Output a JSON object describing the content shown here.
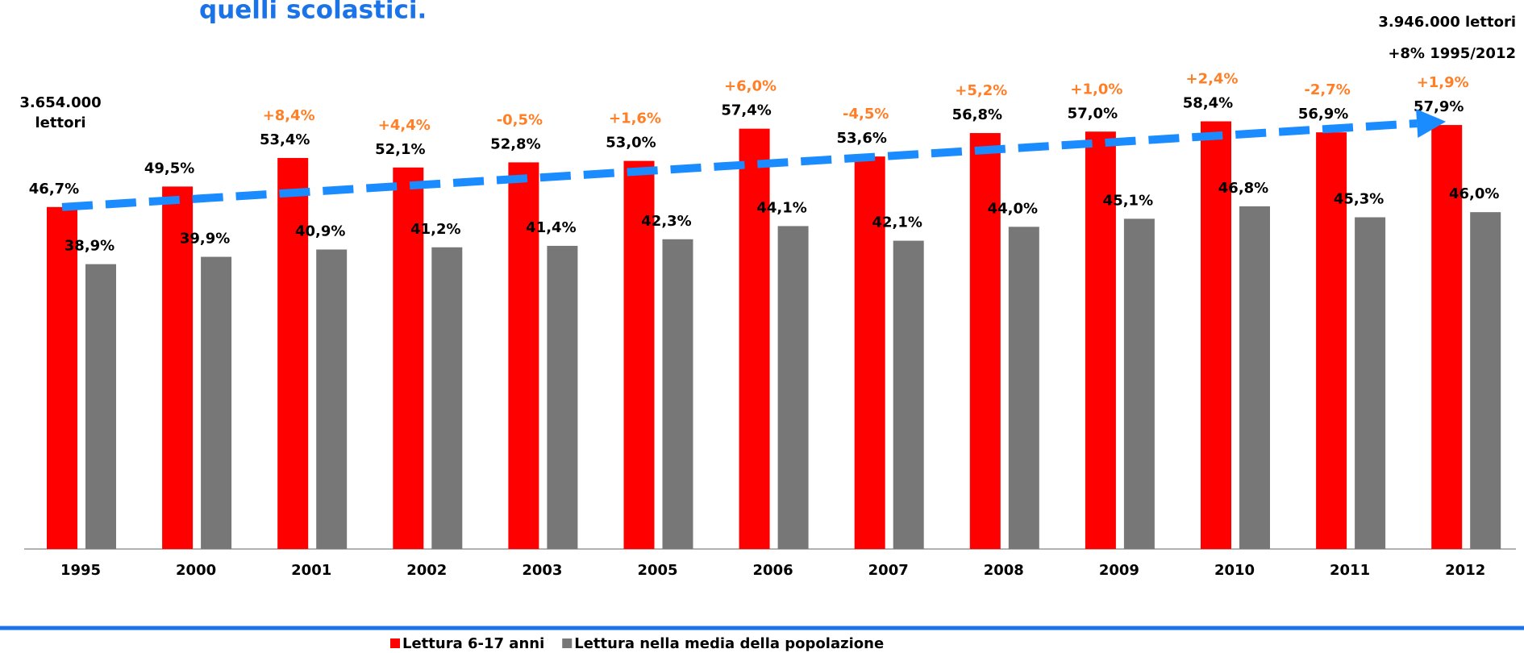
{
  "chart_data": {
    "type": "bar",
    "title": "quelli scolastici.",
    "categories": [
      "1995",
      "2000",
      "2001",
      "2002",
      "2003",
      "2005",
      "2006",
      "2007",
      "2008",
      "2009",
      "2010",
      "2011",
      "2012"
    ],
    "series": [
      {
        "name": "Lettura 6-17 anni",
        "color": "#ff0000",
        "values": [
          46.7,
          49.5,
          53.4,
          52.1,
          52.8,
          53.0,
          57.4,
          53.6,
          56.8,
          57.0,
          58.4,
          56.9,
          57.9
        ],
        "value_labels": [
          "46,7%",
          "49,5%",
          "53,4%",
          "52,1%",
          "52,8%",
          "53,0%",
          "57,4%",
          "53,6%",
          "56,8%",
          "57,0%",
          "58,4%",
          "56,9%",
          "57,9%"
        ]
      },
      {
        "name": "Lettura nella media della popolazione",
        "color": "#777777",
        "values": [
          38.9,
          39.9,
          40.9,
          41.2,
          41.4,
          42.3,
          44.1,
          42.1,
          44.0,
          45.1,
          46.8,
          45.3,
          46.0
        ],
        "value_labels": [
          "38,9%",
          "39,9%",
          "40,9%",
          "41,2%",
          "41,4%",
          "42,3%",
          "44,1%",
          "42,1%",
          "44,0%",
          "45,1%",
          "46,8%",
          "45,3%",
          "46,0%"
        ]
      }
    ],
    "change_labels": [
      null,
      null,
      "+8,4%",
      "+4,4%",
      "-0,5%",
      "+1,6%",
      "+6,0%",
      "-4,5%",
      "+5,2%",
      "+1,0%",
      "+2,4%",
      "-2,7%",
      "+1,9%"
    ],
    "change_color": "#ff7f27",
    "annotations": [
      "3.654.000",
      "lettori",
      "3.946.000 lettori",
      "+8% 1995/2012"
    ],
    "ylim": [
      0,
      60
    ],
    "legend": "bottom"
  }
}
